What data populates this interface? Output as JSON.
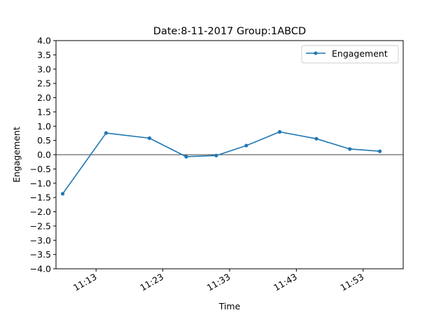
{
  "chart_data": {
    "type": "line",
    "title": "Date:8-11-2017 Group:1ABCD",
    "xlabel": "Time",
    "ylabel": "Engagement",
    "ylim": [
      -4.0,
      4.0
    ],
    "xlim": [
      "11:07",
      "11:59"
    ],
    "yticks": [
      "−4.0",
      "−3.5",
      "−3.0",
      "−2.5",
      "−2.0",
      "−1.5",
      "−1.0",
      "−0.5",
      "0.0",
      "0.5",
      "1.0",
      "1.5",
      "2.0",
      "2.5",
      "3.0",
      "3.5",
      "4.0"
    ],
    "xticks": [
      "11:13",
      "11:23",
      "11:33",
      "11:43",
      "11:53"
    ],
    "grid": false,
    "zero_line": true,
    "legend_position": "top-right",
    "series": [
      {
        "name": "Engagement",
        "color": "#1f77b4",
        "marker": "dot",
        "x": [
          "11:08",
          "11:14.5",
          "11:21",
          "11:26.5",
          "11:31",
          "11:35.5",
          "11:40.5",
          "11:46",
          "11:51",
          "11:55.5"
        ],
        "values": [
          -1.37,
          0.76,
          0.58,
          -0.07,
          -0.03,
          0.32,
          0.8,
          0.56,
          0.2,
          0.12
        ]
      }
    ]
  }
}
